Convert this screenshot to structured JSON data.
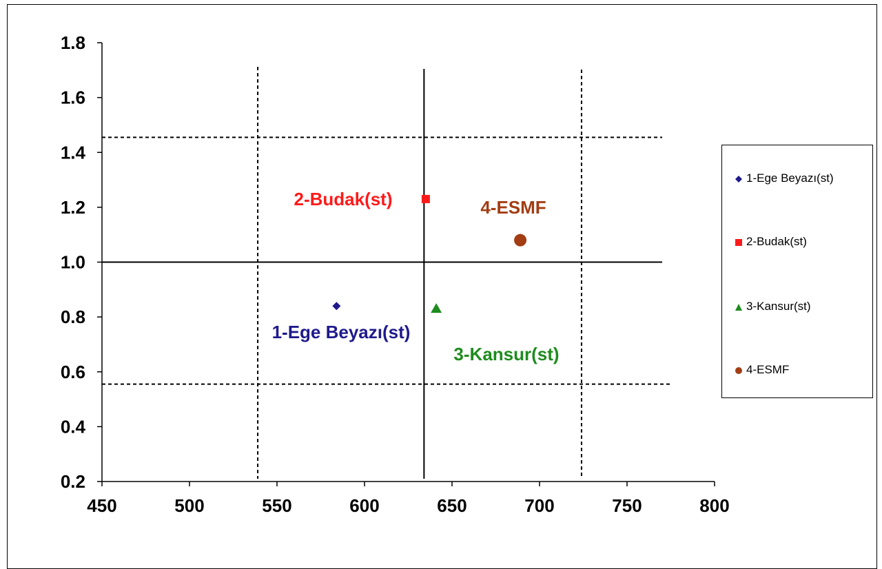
{
  "chart_data": {
    "type": "scatter",
    "title": "",
    "xlabel": "",
    "ylabel": "",
    "xlim": [
      450,
      800
    ],
    "ylim": [
      0.2,
      1.8
    ],
    "xticks": [
      450,
      500,
      550,
      600,
      650,
      700,
      750,
      800
    ],
    "yticks": [
      0.2,
      0.4,
      0.6,
      0.8,
      1.0,
      1.2,
      1.4,
      1.6,
      1.8
    ],
    "xtick_labels": [
      "450",
      "500",
      "550",
      "600",
      "650",
      "700",
      "750",
      "800"
    ],
    "ytick_labels": [
      "0.2",
      "0.4",
      "0.6",
      "0.8",
      "1.0",
      "1.2",
      "1.4",
      "1.6",
      "1.8"
    ],
    "grid": false,
    "legend_position": "right",
    "series": [
      {
        "name": "1-Ege Beyazı(st)",
        "x": [
          584
        ],
        "y": [
          0.84
        ],
        "marker": "diamond",
        "color": "#1f1a8c",
        "label": "1-Ege Beyazı(st)"
      },
      {
        "name": "2-Budak(st)",
        "x": [
          635
        ],
        "y": [
          1.23
        ],
        "marker": "square",
        "color": "#ff1a1a",
        "label": "2-Budak(st)"
      },
      {
        "name": "3-Kansur(st)",
        "x": [
          641
        ],
        "y": [
          0.83
        ],
        "marker": "triangle",
        "color": "#1e8c1e",
        "label": "3-Kansur(st)"
      },
      {
        "name": "4-ESMF",
        "x": [
          689
        ],
        "y": [
          1.08
        ],
        "marker": "circle",
        "color": "#a23d14",
        "label": "4-ESMF"
      }
    ],
    "reference_lines": [
      {
        "orientation": "vertical",
        "value": 634,
        "style": "solid"
      },
      {
        "orientation": "vertical",
        "value": 539,
        "style": "dashed"
      },
      {
        "orientation": "vertical",
        "value": 724,
        "style": "dashed"
      },
      {
        "orientation": "horizontal",
        "value": 1.0,
        "style": "solid"
      },
      {
        "orientation": "horizontal",
        "value": 1.455,
        "style": "dashed"
      },
      {
        "orientation": "horizontal",
        "value": 0.555,
        "style": "dashed"
      }
    ]
  }
}
